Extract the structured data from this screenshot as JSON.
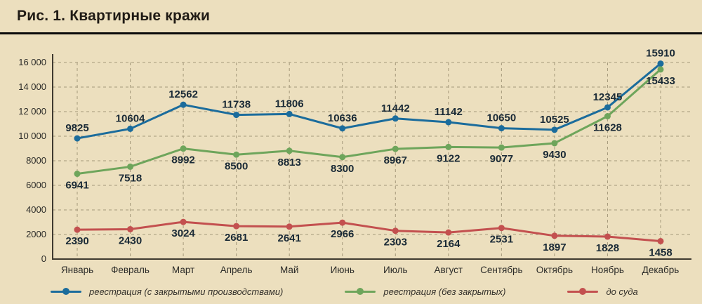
{
  "header": {
    "title": "Рис. 1. Квартирные кражи"
  },
  "colors": {
    "background": "#ECDFBE",
    "title_text": "#201B15",
    "axis_line": "#3F3A30",
    "grid_line": "#A5997B",
    "axis_text": "#2B2B28",
    "label_text": "#1A2A36"
  },
  "chart_data": {
    "type": "line",
    "title": "Рис. 1. Квартирные кражи",
    "categories": [
      "Январь",
      "Февраль",
      "Март",
      "Апрель",
      "Май",
      "Июнь",
      "Июль",
      "Август",
      "Сентябрь",
      "Октябрь",
      "Ноябрь",
      "Декабрь"
    ],
    "series": [
      {
        "name": "реестрация (с закрытыми производствами)",
        "color": "#1B6C9C",
        "label_position": "above",
        "values": [
          9825,
          10604,
          12562,
          11738,
          11806,
          10636,
          11442,
          11142,
          10650,
          10525,
          12345,
          15910
        ]
      },
      {
        "name": "реестрация (без закрытых)",
        "color": "#6EA55B",
        "label_position": "below",
        "values": [
          6941,
          7518,
          8992,
          8500,
          8813,
          8300,
          8967,
          9122,
          9077,
          9430,
          11628,
          15433
        ]
      },
      {
        "name": "до суда",
        "color": "#C3504F",
        "label_position": "below",
        "values": [
          2390,
          2430,
          3024,
          2681,
          2641,
          2966,
          2303,
          2164,
          2531,
          1897,
          1828,
          1458
        ]
      }
    ],
    "xlabel": "",
    "ylabel": "",
    "ylim": [
      0,
      16000
    ],
    "ytick_step": 2000,
    "ytick_labels": [
      "0",
      "2000",
      "4000",
      "6000",
      "8000",
      "10 000",
      "12 000",
      "14 000",
      "16 000"
    ],
    "grid": true,
    "grid_style": "dashed",
    "legend_position": "bottom"
  }
}
